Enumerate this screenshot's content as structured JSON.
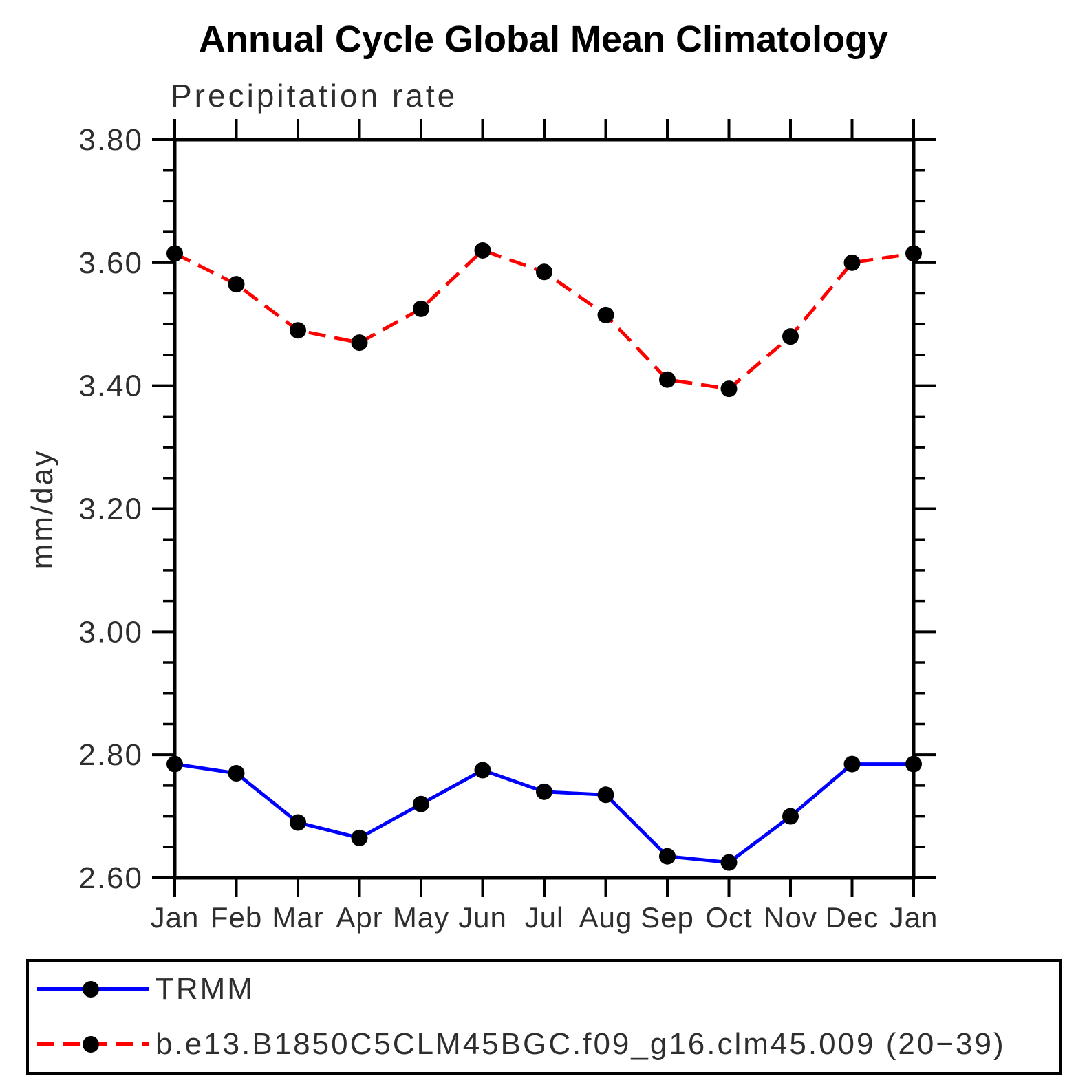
{
  "title": "Annual Cycle Global Mean Climatology",
  "subtitle": "Precipitation rate",
  "chart_data": {
    "type": "line",
    "title": "Annual Cycle Global Mean Climatology",
    "subtitle": "Precipitation rate",
    "xlabel": "",
    "ylabel": "mm/day",
    "categories": [
      "Jan",
      "Feb",
      "Mar",
      "Apr",
      "May",
      "Jun",
      "Jul",
      "Aug",
      "Sep",
      "Oct",
      "Nov",
      "Dec",
      "Jan"
    ],
    "ylim": [
      2.6,
      3.8
    ],
    "ytick_labels": [
      "3.80",
      "3.60",
      "3.40",
      "3.20",
      "3.00",
      "2.80",
      "2.60"
    ],
    "yticks_major": [
      3.8,
      3.6,
      3.4,
      3.2,
      3.0,
      2.8,
      2.6
    ],
    "yminor_step": 0.05,
    "grid": "off",
    "legend_position": "bottom",
    "axis_color": "#000000",
    "marker_color": "#000000",
    "series": [
      {
        "name": "TRMM",
        "color": "#0000ff",
        "style": "solid",
        "values": [
          2.785,
          2.77,
          2.69,
          2.665,
          2.72,
          2.775,
          2.74,
          2.735,
          2.635,
          2.625,
          2.7,
          2.785,
          2.785
        ]
      },
      {
        "name": "b.e13.B1850C5CLM45BGC.f09_g16.clm45.009 (20−39)",
        "color": "#ff0000",
        "style": "dashed",
        "values": [
          3.615,
          3.565,
          3.49,
          3.47,
          3.525,
          3.62,
          3.585,
          3.515,
          3.41,
          3.395,
          3.48,
          3.6,
          3.615
        ]
      }
    ]
  }
}
